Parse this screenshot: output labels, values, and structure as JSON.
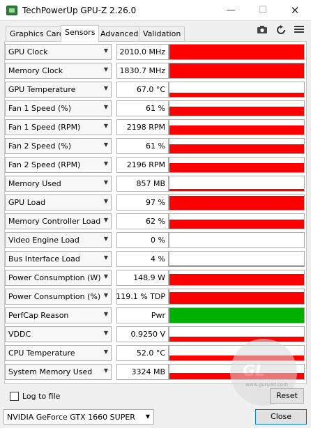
{
  "window": {
    "title": "TechPowerUp GPU-Z 2.26.0",
    "controls": {
      "minimize": "—",
      "maximize": "☐",
      "close": "✕"
    }
  },
  "tabs": [
    {
      "label": "Graphics Card",
      "active": false
    },
    {
      "label": "Sensors",
      "active": true
    },
    {
      "label": "Advanced",
      "active": false
    },
    {
      "label": "Validation",
      "active": false
    }
  ],
  "toolbar_icons": [
    "camera-icon",
    "refresh-icon",
    "menu-icon"
  ],
  "sensors": [
    {
      "name": "GPU Clock",
      "value": "2010.0 MHz",
      "level": 1.0,
      "color": "#ff0000"
    },
    {
      "name": "Memory Clock",
      "value": "1830.7 MHz",
      "level": 1.0,
      "color": "#ff0000"
    },
    {
      "name": "GPU Temperature",
      "value": "67.0 °C",
      "level": 0.3,
      "color": "#ff0000"
    },
    {
      "name": "Fan 1 Speed (%)",
      "value": "61 %",
      "level": 0.6,
      "color": "#ff0000"
    },
    {
      "name": "Fan 1 Speed (RPM)",
      "value": "2198 RPM",
      "level": 0.6,
      "color": "#ff0000"
    },
    {
      "name": "Fan 2 Speed (%)",
      "value": "61 %",
      "level": 0.6,
      "color": "#ff0000"
    },
    {
      "name": "Fan 2 Speed (RPM)",
      "value": "2196 RPM",
      "level": 0.6,
      "color": "#ff0000"
    },
    {
      "name": "Memory Used",
      "value": "857 MB",
      "level": 0.15,
      "color": "#ff0000"
    },
    {
      "name": "GPU Load",
      "value": "97 %",
      "level": 0.97,
      "color": "#ff0000"
    },
    {
      "name": "Memory Controller Load",
      "value": "62 %",
      "level": 0.62,
      "color": "#ff0000"
    },
    {
      "name": "Video Engine Load",
      "value": "0 %",
      "level": 0.0,
      "color": "#ff0000"
    },
    {
      "name": "Bus Interface Load",
      "value": "4 %",
      "level": 0.04,
      "color": "#ff0000"
    },
    {
      "name": "Power Consumption (W)",
      "value": "148.9 W",
      "level": 0.75,
      "color": "#ff0000"
    },
    {
      "name": "Power Consumption (%)",
      "value": "119.1 % TDP",
      "level": 0.8,
      "color": "#ff0000"
    },
    {
      "name": "PerfCap Reason",
      "value": "Pwr",
      "level": 1.0,
      "color": "#00b000"
    },
    {
      "name": "VDDC",
      "value": "0.9250 V",
      "level": 0.35,
      "color": "#ff0000"
    },
    {
      "name": "CPU Temperature",
      "value": "52.0 °C",
      "level": 0.35,
      "color": "#ff0000"
    },
    {
      "name": "System Memory Used",
      "value": "3324 MB",
      "level": 0.45,
      "color": "#ff0000"
    }
  ],
  "bottom": {
    "log_label": "Log to file",
    "log_checked": false,
    "reset_label": "Reset",
    "gpu_selected": "NVIDIA GeForce GTX 1660 SUPER",
    "close_label": "Close"
  },
  "watermark": {
    "text": "GL",
    "site": "www.guru3d.com"
  }
}
